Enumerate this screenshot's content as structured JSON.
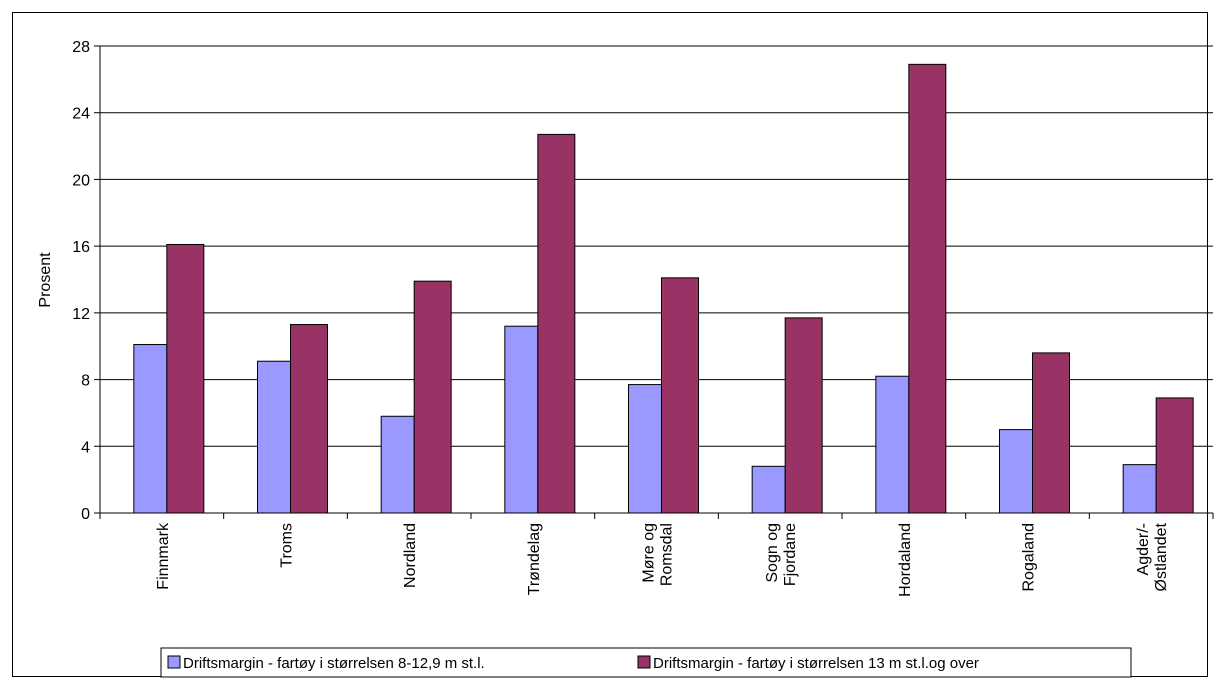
{
  "colors": {
    "series1": "#9999FF",
    "series2": "#993366",
    "grid": "#000000"
  },
  "chart_data": {
    "type": "bar",
    "title": "",
    "xlabel": "",
    "ylabel": "Prosent",
    "ylim": [
      0,
      28
    ],
    "yticks": [
      0,
      4,
      8,
      12,
      16,
      20,
      24,
      28
    ],
    "grid": true,
    "legend_position": "bottom",
    "categories": [
      [
        "Finnmark"
      ],
      [
        "Troms"
      ],
      [
        "Nordland"
      ],
      [
        "Trøndelag"
      ],
      [
        "Møre og",
        "Romsdal"
      ],
      [
        "Sogn og",
        "Fjordane"
      ],
      [
        "Hordaland"
      ],
      [
        "Rogaland"
      ],
      [
        "Agder/-",
        "Østlandet"
      ]
    ],
    "series": [
      {
        "name": "Driftsmargin - fartøy i størrelsen 8-12,9 m st.l.",
        "values": [
          10.1,
          9.1,
          5.8,
          11.2,
          7.7,
          2.8,
          8.2,
          5.0,
          2.9
        ]
      },
      {
        "name": "Driftsmargin - fartøy i størrelsen 13 m st.l.og over",
        "values": [
          16.1,
          11.3,
          13.9,
          22.7,
          14.1,
          11.7,
          26.9,
          9.6,
          6.9
        ]
      }
    ]
  }
}
